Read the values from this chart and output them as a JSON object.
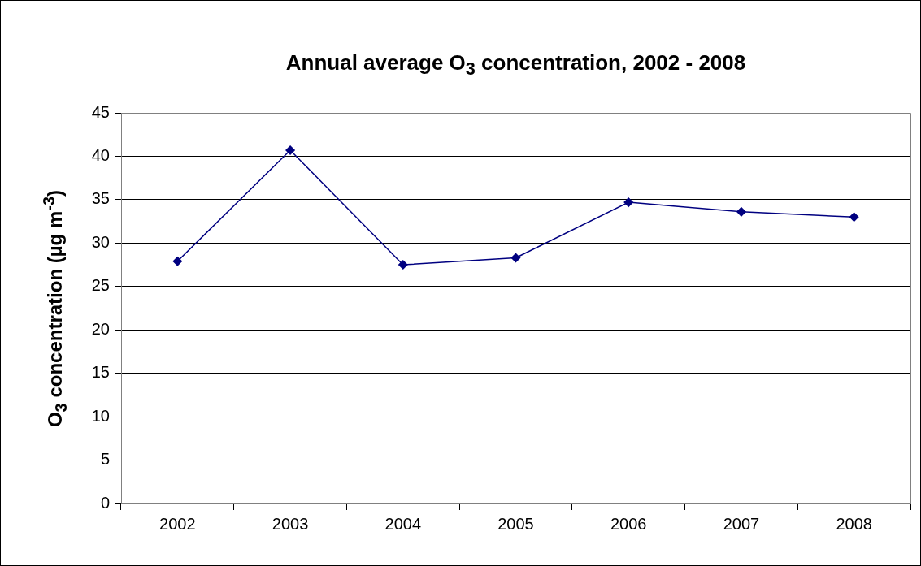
{
  "chart_data": {
    "type": "line",
    "title": "Annual average O$_{3}$ concentration, 2002 - 2008",
    "ylabel": "O$_{3}$ concentration (µg m$^{-3}$)",
    "categories": [
      "2002",
      "2003",
      "2004",
      "2005",
      "2006",
      "2007",
      "2008"
    ],
    "series": [
      {
        "color": "#000080",
        "values": [
          27.9,
          40.7,
          27.5,
          28.3,
          34.7,
          33.6,
          33.0
        ]
      }
    ],
    "ylim": [
      0,
      45
    ],
    "yticks": [
      0,
      5,
      10,
      15,
      20,
      25,
      30,
      35,
      40,
      45
    ],
    "grid": "y",
    "marker": "diamond",
    "line_style": "solid"
  }
}
